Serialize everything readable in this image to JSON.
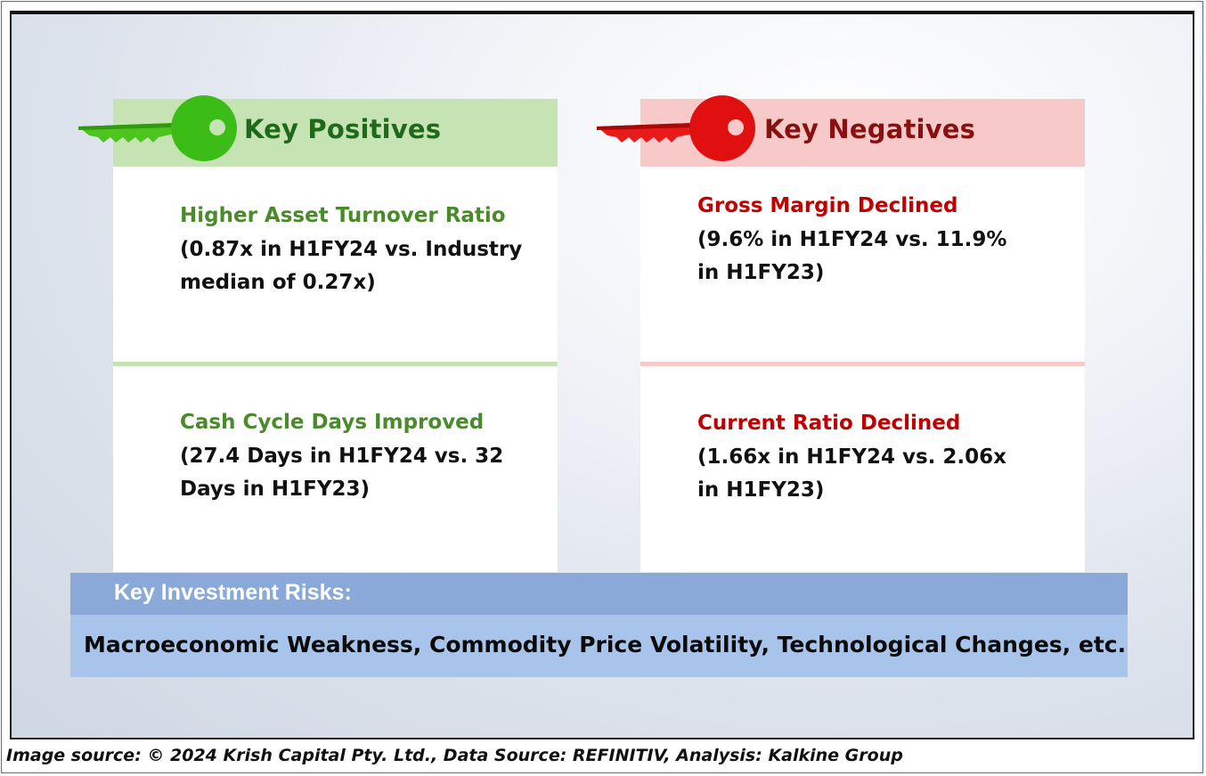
{
  "positives": {
    "title": "Key Positives",
    "items": [
      {
        "title": "Higher Asset Turnover Ratio",
        "line1": "(0.87x in H1FY24 vs. Industry",
        "line2": "median of 0.27x)"
      },
      {
        "title": "Cash Cycle Days Improved",
        "line1": "(27.4 Days in H1FY24 vs. 32",
        "line2": "Days in H1FY23)"
      }
    ]
  },
  "negatives": {
    "title": "Key Negatives",
    "items": [
      {
        "title": "Gross Margin Declined",
        "line1": "(9.6% in H1FY24 vs. 11.9%",
        "line2": "in H1FY23)"
      },
      {
        "title": "Current Ratio Declined",
        "line1": "(1.66x in H1FY24 vs. 2.06x",
        "line2": "in H1FY23)"
      }
    ]
  },
  "risks": {
    "title": "Key Investment Risks:",
    "text": "Macroeconomic Weakness, Commodity Price Volatility, Technological Changes, etc."
  },
  "footer": "Image source: © 2024 Krish Capital Pty. Ltd., Data Source: REFINITIV, Analysis: Kalkine Group",
  "colors": {
    "positive_accent": "#4a8a2a",
    "negative_accent": "#c00000",
    "key_green": "#3fbf1a",
    "key_red": "#e01010"
  },
  "icons": {
    "positives": "green-key-icon",
    "negatives": "red-key-icon"
  }
}
